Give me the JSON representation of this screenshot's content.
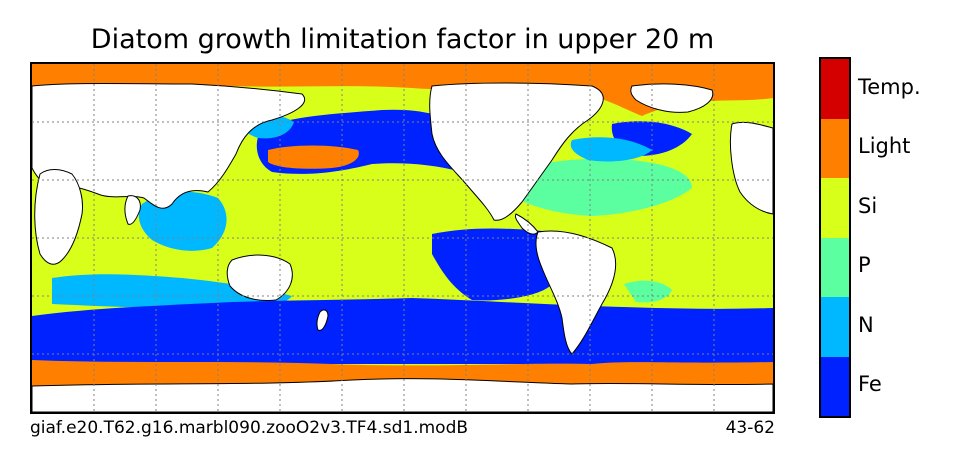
{
  "title": "Diatom growth limitation factor in upper 20 m",
  "caption_left": "giaf.e20.T62.g16.marbl090.zooO2v3.TF4.sd1.modB",
  "caption_right": "43-62",
  "legend": [
    {
      "label": "Temp.",
      "color": "#d40000"
    },
    {
      "label": "Light",
      "color": "#ff8000"
    },
    {
      "label": "Si",
      "color": "#d8ff1a"
    },
    {
      "label": "P",
      "color": "#5cffa0"
    },
    {
      "label": "N",
      "color": "#00b8ff"
    },
    {
      "label": "Fe",
      "color": "#0022ff"
    }
  ],
  "colors": {
    "land": "#ffffff",
    "coast": "#000000",
    "grid": "#808080"
  }
}
